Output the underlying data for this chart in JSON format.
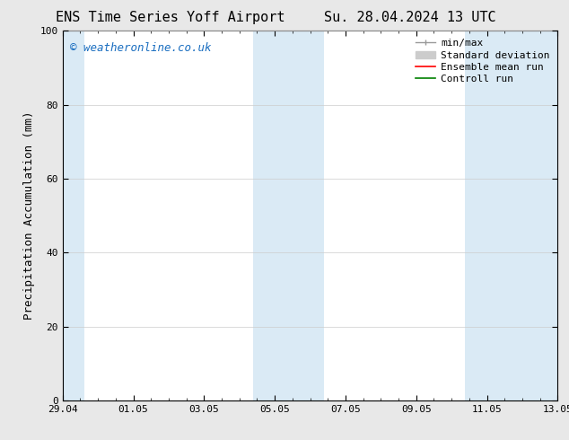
{
  "title_left": "ENS Time Series Yoff Airport",
  "title_right": "Su. 28.04.2024 13 UTC",
  "ylabel": "Precipitation Accumulation (mm)",
  "ylim": [
    0,
    100
  ],
  "yticks": [
    0,
    20,
    40,
    60,
    80,
    100
  ],
  "xtick_labels": [
    "29.04",
    "01.05",
    "03.05",
    "05.05",
    "07.05",
    "09.05",
    "11.05",
    "13.05"
  ],
  "xtick_positions": [
    0,
    2,
    4,
    6,
    8,
    10,
    12,
    14
  ],
  "x_total": 14,
  "shaded_bands": [
    {
      "x_start": 0.0,
      "x_end": 0.62
    },
    {
      "x_start": 5.38,
      "x_end": 7.38
    },
    {
      "x_start": 11.38,
      "x_end": 14.0
    }
  ],
  "shaded_color": "#daeaf5",
  "figure_bg": "#e8e8e8",
  "plot_bg": "#ffffff",
  "watermark_text": "© weatheronline.co.uk",
  "watermark_color": "#1a6ec0",
  "minmax_color": "#999999",
  "stddev_color": "#cccccc",
  "ensemble_color": "#ff0000",
  "control_color": "#008000",
  "title_fontsize": 11,
  "axis_label_fontsize": 9,
  "tick_fontsize": 8,
  "watermark_fontsize": 9,
  "legend_fontsize": 8
}
